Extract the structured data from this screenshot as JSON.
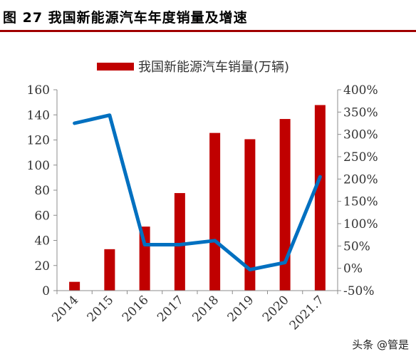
{
  "figure_title": "图 27 我国新能源汽车年度销量及增速",
  "watermark": "头条 @管是",
  "chart_data": {
    "type": "bar+line",
    "categories": [
      "2014",
      "2015",
      "2016",
      "2017",
      "2018",
      "2019",
      "2020",
      "2021.7"
    ],
    "series": [
      {
        "name": "我国新能源汽车销量(万辆)",
        "type": "bar",
        "axis": "left",
        "values": [
          7,
          33,
          51,
          77.7,
          125.6,
          120.6,
          136.7,
          147.8
        ]
      },
      {
        "type": "line",
        "axis": "right",
        "values": [
          325,
          343,
          53,
          53,
          62,
          -3,
          13,
          205
        ]
      }
    ],
    "y_left": {
      "ticks": [
        "0",
        "20",
        "40",
        "60",
        "80",
        "100",
        "120",
        "140",
        "160"
      ],
      "lim": [
        0,
        160
      ]
    },
    "y_right": {
      "ticks": [
        "-50%",
        "0%",
        "50%",
        "100%",
        "150%",
        "200%",
        "250%",
        "300%",
        "350%",
        "400%"
      ],
      "lim": [
        -50,
        400
      ]
    },
    "legend_position": "top-center",
    "grid": false,
    "colors": {
      "bar": "#c00000",
      "line": "#0070c0"
    }
  }
}
